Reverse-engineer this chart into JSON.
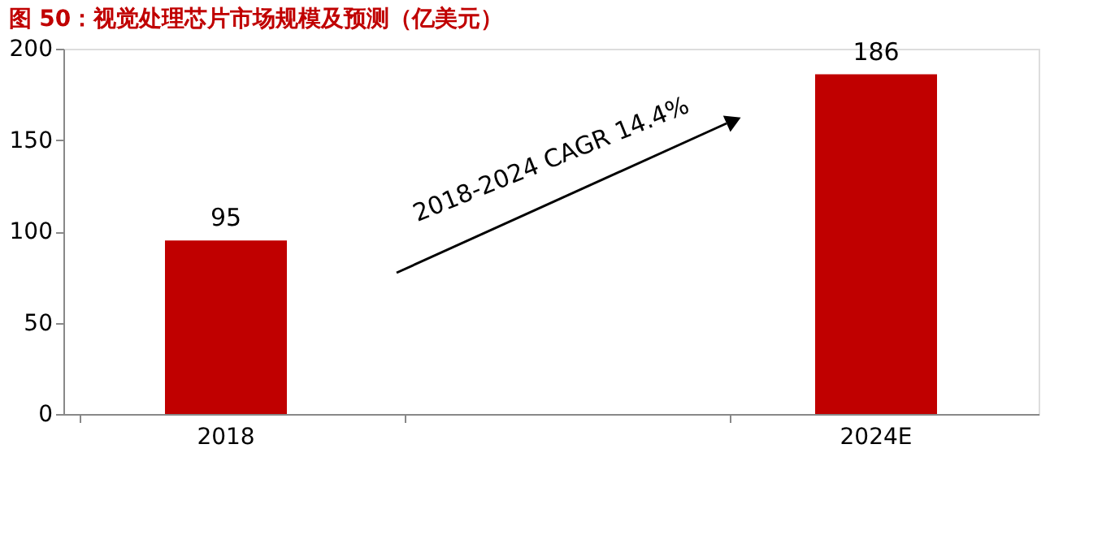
{
  "chart_data": {
    "type": "bar",
    "title": "图 50：视觉处理芯片市场规模及预测（亿美元）",
    "categories": [
      "2018",
      null,
      "2024E"
    ],
    "values": [
      95,
      null,
      186
    ],
    "color": "#c00000",
    "ylim": [
      0,
      200
    ],
    "yticks": [
      0,
      50,
      100,
      150,
      200
    ],
    "grid": false,
    "data_labels": true,
    "annotations": [
      "2018-2024 CAGR 14.4%"
    ]
  }
}
